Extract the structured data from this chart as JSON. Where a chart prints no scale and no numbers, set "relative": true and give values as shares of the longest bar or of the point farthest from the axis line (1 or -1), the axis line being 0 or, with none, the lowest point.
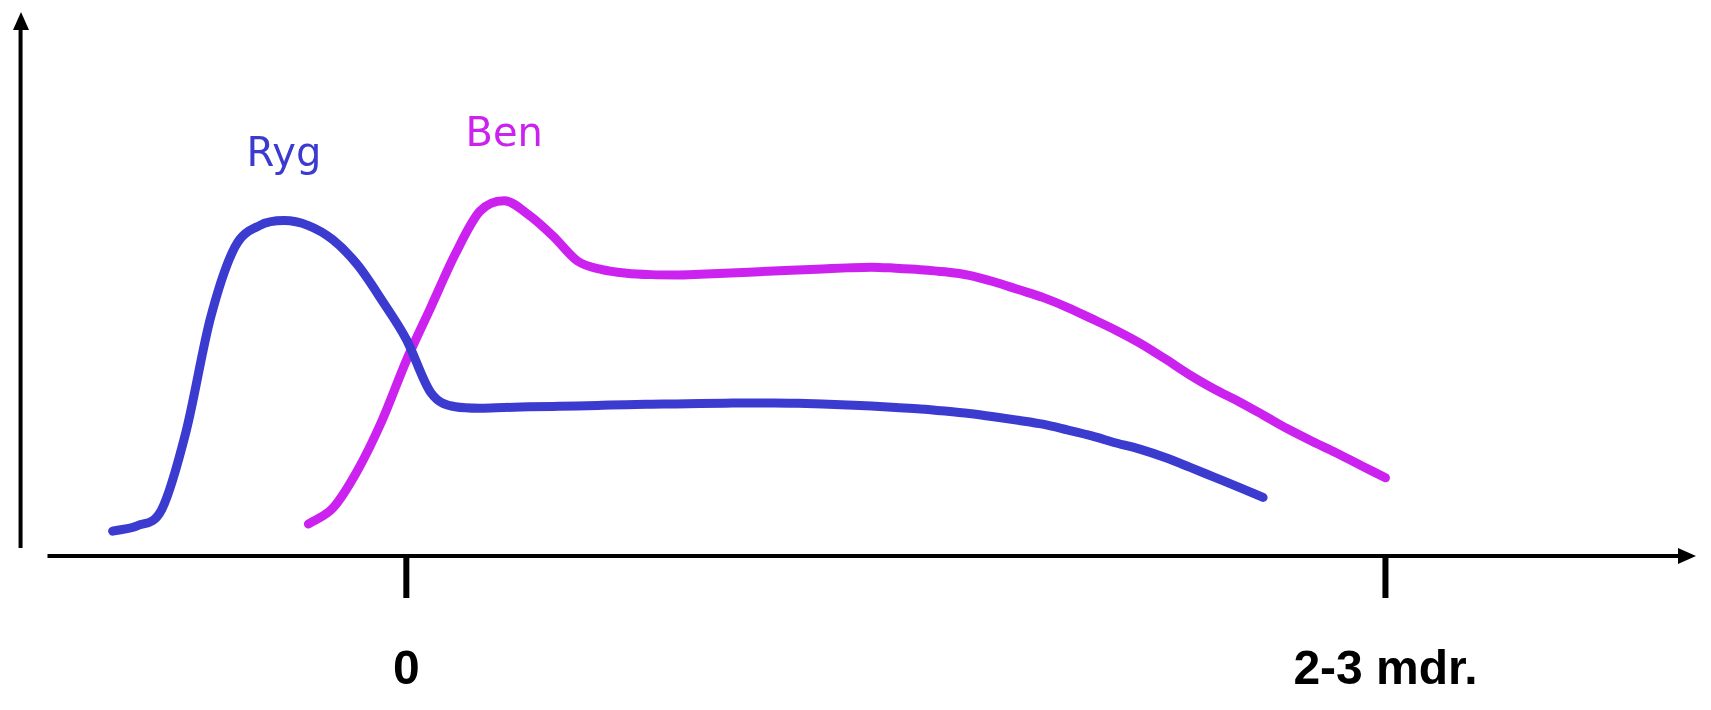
{
  "chart_data": {
    "type": "line",
    "relative": true,
    "marker": "none",
    "legend": false,
    "categories": [
      null,
      null,
      null,
      null,
      null,
      null,
      null,
      null,
      null,
      null,
      null,
      null,
      "0",
      null,
      null,
      null,
      null,
      null,
      null,
      null,
      null,
      null,
      null,
      null,
      null,
      null,
      null,
      null,
      null,
      null,
      null,
      null,
      null,
      null,
      null,
      null,
      null,
      null,
      null,
      null,
      null,
      null,
      null,
      null,
      null,
      null,
      null,
      null,
      null,
      null,
      null,
      null,
      "2-3 mdr."
    ],
    "series": [
      {
        "name": "Ryg",
        "color": "#3b3bd0",
        "values": [
          0.07,
          0.085,
          0.13,
          0.35,
          0.67,
          0.87,
          0.93,
          0.944,
          0.93,
          0.89,
          0.82,
          0.72,
          0.61,
          0.46,
          0.42,
          0.416,
          0.418,
          0.42,
          0.421,
          0.422,
          0.424,
          0.426,
          0.427,
          0.428,
          0.429,
          0.43,
          0.431,
          0.431,
          0.43,
          0.428,
          0.425,
          0.422,
          0.418,
          0.414,
          0.408,
          0.401,
          0.392,
          0.382,
          0.371,
          0.355,
          0.338,
          0.318,
          0.3,
          0.277,
          0.25,
          0.222,
          0.194,
          0.165,
          null,
          null,
          null,
          null,
          null
        ]
      },
      {
        "name": "Ben",
        "color": "#cc22f0",
        "values": [
          null,
          null,
          null,
          null,
          null,
          null,
          null,
          null,
          0.09,
          0.135,
          0.24,
          0.38,
          0.55,
          0.7,
          0.85,
          0.97,
          1.0,
          0.96,
          0.9,
          0.83,
          0.806,
          0.796,
          0.792,
          0.791,
          0.793,
          0.796,
          0.799,
          0.802,
          0.805,
          0.808,
          0.811,
          0.813,
          0.81,
          0.806,
          0.8,
          0.79,
          0.772,
          0.75,
          0.728,
          0.7,
          0.668,
          0.635,
          0.598,
          0.555,
          0.51,
          0.47,
          0.435,
          0.397,
          0.358,
          0.323,
          0.29,
          0.255,
          0.22
        ]
      }
    ]
  }
}
